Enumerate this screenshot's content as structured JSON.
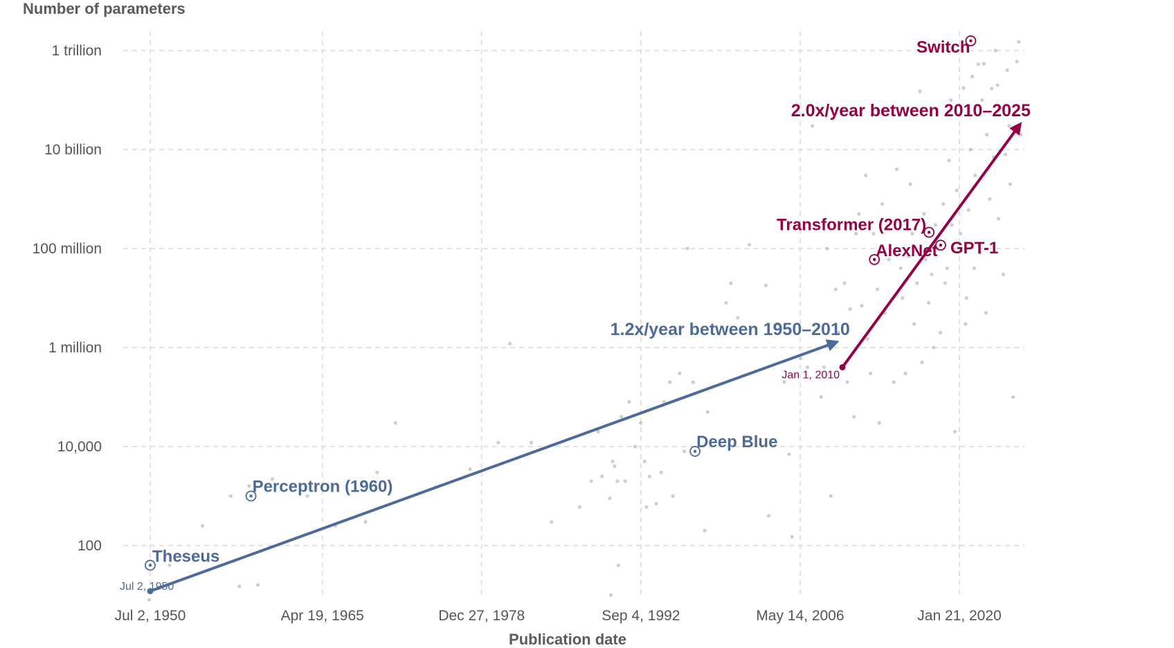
{
  "chart_data": {
    "type": "scatter",
    "ylabel": "Number of parameters",
    "xlabel": "Publication date",
    "y_scale": "log",
    "ylim": [
      8,
      2000000000000
    ],
    "xlim": [
      "1949-05-01",
      "2025-10-01"
    ],
    "grid": true,
    "y_ticks": [
      {
        "value": 100,
        "label": "100"
      },
      {
        "value": 10000,
        "label": "10,000"
      },
      {
        "value": 1000000,
        "label": "1 million"
      },
      {
        "value": 100000000,
        "label": "100 million"
      },
      {
        "value": 10000000000,
        "label": "10 billion"
      },
      {
        "value": 1000000000000,
        "label": "1 trillion"
      }
    ],
    "x_ticks": [
      {
        "value": "1950-07-02",
        "label": "Jul 2, 1950"
      },
      {
        "value": "1965-04-19",
        "label": "Apr 19, 1965"
      },
      {
        "value": "1978-12-27",
        "label": "Dec 27, 1978"
      },
      {
        "value": "1992-09-04",
        "label": "Sep 4, 1992"
      },
      {
        "value": "2006-05-14",
        "label": "May 14, 2006"
      },
      {
        "value": "2020-01-21",
        "label": "Jan 21, 2020"
      }
    ],
    "colors": {
      "early": "#4c6a9c",
      "recent": "#970046",
      "points": "#bdbdbd",
      "grid": "#d9d9d9",
      "text": "#555555"
    },
    "trends": [
      {
        "label": "1.2x/year between 1950–2010",
        "start_label": "Jul 2, 1950",
        "color": "#4c6a9c",
        "start": {
          "x": "1950-07-02",
          "y": 12
        },
        "end": {
          "x": "2009-05-01",
          "y": 1250000
        }
      },
      {
        "label": "2.0x/year between 2010–2025",
        "start_label": "Jan 1, 2010",
        "color": "#970046",
        "start": {
          "x": "2010-01-01",
          "y": 400000
        },
        "end": {
          "x": "2025-03-01",
          "y": 30000000000
        }
      }
    ],
    "highlighted": [
      {
        "name": "Theseus",
        "x": "1950-07-02",
        "y": 40,
        "color": "#4c6a9c"
      },
      {
        "name": "Perceptron (1960)",
        "x": "1959-03-01",
        "y": 1000,
        "color": "#4c6a9c"
      },
      {
        "name": "Deep Blue",
        "x": "1997-05-01",
        "y": 8000,
        "color": "#4c6a9c"
      },
      {
        "name": "AlexNet",
        "x": "2012-09-30",
        "y": 60000000,
        "color": "#970046"
      },
      {
        "name": "Transformer (2017)",
        "x": "2017-06-12",
        "y": 213000000,
        "color": "#970046"
      },
      {
        "name": "GPT-1",
        "x": "2018-06-11",
        "y": 117000000,
        "color": "#970046"
      },
      {
        "name": "Switch",
        "x": "2021-01-11",
        "y": 1570000000000,
        "color": "#970046"
      }
    ],
    "points": [
      {
        "x": "1950-06-01",
        "y": 8
      },
      {
        "x": "1952-03-01",
        "y": 40
      },
      {
        "x": "1955-01-01",
        "y": 250
      },
      {
        "x": "1957-06-01",
        "y": 1000
      },
      {
        "x": "1959-01-01",
        "y": 1600
      },
      {
        "x": "1958-03-01",
        "y": 15
      },
      {
        "x": "1959-10-01",
        "y": 16
      },
      {
        "x": "1961-01-01",
        "y": 2200
      },
      {
        "x": "1964-01-01",
        "y": 1000
      },
      {
        "x": "1966-06-01",
        "y": 250
      },
      {
        "x": "1969-01-01",
        "y": 300
      },
      {
        "x": "1970-01-01",
        "y": 3000
      },
      {
        "x": "1971-08-01",
        "y": 30000
      },
      {
        "x": "1975-01-01",
        "y": 1500
      },
      {
        "x": "1978-01-01",
        "y": 3500
      },
      {
        "x": "1980-06-01",
        "y": 12000
      },
      {
        "x": "1981-06-01",
        "y": 1200000
      },
      {
        "x": "1983-04-01",
        "y": 12000
      },
      {
        "x": "1985-01-01",
        "y": 300
      },
      {
        "x": "1987-06-01",
        "y": 600
      },
      {
        "x": "1988-06-01",
        "y": 2000
      },
      {
        "x": "1989-01-01",
        "y": 20000
      },
      {
        "x": "1989-05-01",
        "y": 2500
      },
      {
        "x": "1990-01-01",
        "y": 900
      },
      {
        "x": "1990-06-01",
        "y": 4000
      },
      {
        "x": "1990-04-01",
        "y": 5000
      },
      {
        "x": "1990-09-01",
        "y": 2000
      },
      {
        "x": "1991-01-01",
        "y": 40000
      },
      {
        "x": "1991-05-01",
        "y": 2000
      },
      {
        "x": "1991-09-01",
        "y": 80000
      },
      {
        "x": "1990-10-01",
        "y": 40
      },
      {
        "x": "1990-02-01",
        "y": 10
      },
      {
        "x": "1992-03-01",
        "y": 10000
      },
      {
        "x": "1992-09-01",
        "y": 30000
      },
      {
        "x": "1993-01-01",
        "y": 5000
      },
      {
        "x": "1993-06-01",
        "y": 2500
      },
      {
        "x": "1993-03-01",
        "y": 600
      },
      {
        "x": "1994-01-01",
        "y": 700
      },
      {
        "x": "1994-06-01",
        "y": 3000
      },
      {
        "x": "1994-09-01",
        "y": 80000
      },
      {
        "x": "1995-06-01",
        "y": 1000
      },
      {
        "x": "1995-03-01",
        "y": 200000
      },
      {
        "x": "1996-06-01",
        "y": 8000
      },
      {
        "x": "1996-01-01",
        "y": 300000
      },
      {
        "x": "1996-09-01",
        "y": 100000000
      },
      {
        "x": "1997-03-01",
        "y": 200000
      },
      {
        "x": "1998-06-01",
        "y": 50000
      },
      {
        "x": "1998-03-01",
        "y": 200
      },
      {
        "x": "2000-01-01",
        "y": 8000000
      },
      {
        "x": "2000-06-01",
        "y": 20000000
      },
      {
        "x": "2001-01-01",
        "y": 4000000
      },
      {
        "x": "2002-01-01",
        "y": 120000000
      },
      {
        "x": "2003-06-01",
        "y": 18000000
      },
      {
        "x": "2003-09-01",
        "y": 400
      },
      {
        "x": "2004-06-01",
        "y": 3000000
      },
      {
        "x": "2005-01-01",
        "y": 200000
      },
      {
        "x": "2005-06-01",
        "y": 7000
      },
      {
        "x": "2005-09-01",
        "y": 150
      },
      {
        "x": "2006-06-01",
        "y": 600000
      },
      {
        "x": "2007-01-01",
        "y": 400000
      },
      {
        "x": "2007-06-01",
        "y": 30000000000
      },
      {
        "x": "2008-03-01",
        "y": 100000
      },
      {
        "x": "2008-06-01",
        "y": 400000
      },
      {
        "x": "2008-09-01",
        "y": 100000000
      },
      {
        "x": "2009-01-01",
        "y": 1000
      },
      {
        "x": "2009-06-01",
        "y": 15000000
      },
      {
        "x": "2009-09-01",
        "y": 2000000
      },
      {
        "x": "2010-03-01",
        "y": 20000000
      },
      {
        "x": "2010-06-01",
        "y": 200000
      },
      {
        "x": "2010-09-01",
        "y": 6000000
      },
      {
        "x": "2011-01-01",
        "y": 40000
      },
      {
        "x": "2011-03-01",
        "y": 200000000
      },
      {
        "x": "2011-06-01",
        "y": 500000000
      },
      {
        "x": "2011-09-01",
        "y": 7000000
      },
      {
        "x": "2012-01-01",
        "y": 3000000000
      },
      {
        "x": "2012-03-01",
        "y": 1500000
      },
      {
        "x": "2012-06-01",
        "y": 300000
      },
      {
        "x": "2012-09-01",
        "y": 200000000
      },
      {
        "x": "2013-01-01",
        "y": 15000000
      },
      {
        "x": "2013-03-01",
        "y": 30000
      },
      {
        "x": "2013-06-01",
        "y": 800000000
      },
      {
        "x": "2013-09-01",
        "y": 5000000
      },
      {
        "x": "2014-01-01",
        "y": 60000000
      },
      {
        "x": "2014-06-01",
        "y": 200000
      },
      {
        "x": "2014-09-01",
        "y": 4000000000
      },
      {
        "x": "2015-01-01",
        "y": 40000000
      },
      {
        "x": "2015-03-01",
        "y": 10000000
      },
      {
        "x": "2015-06-01",
        "y": 300000
      },
      {
        "x": "2015-09-01",
        "y": 70000000
      },
      {
        "x": "2016-01-01",
        "y": 200000000
      },
      {
        "x": "2016-03-01",
        "y": 3000000
      },
      {
        "x": "2016-06-01",
        "y": 20000000
      },
      {
        "x": "2016-09-01",
        "y": 150000000000
      },
      {
        "x": "2017-01-01",
        "y": 500000000
      },
      {
        "x": "2017-03-01",
        "y": 60000000
      },
      {
        "x": "2017-06-01",
        "y": 8000000
      },
      {
        "x": "2017-09-01",
        "y": 30000000
      },
      {
        "x": "2018-01-01",
        "y": 300000000
      },
      {
        "x": "2018-03-01",
        "y": 100000000
      },
      {
        "x": "2018-06-01",
        "y": 2000000
      },
      {
        "x": "2018-09-01",
        "y": 800000000
      },
      {
        "x": "2019-01-01",
        "y": 40000000
      },
      {
        "x": "2019-03-01",
        "y": 6000000000
      },
      {
        "x": "2019-06-01",
        "y": 300000000
      },
      {
        "x": "2019-09-01",
        "y": 20000
      },
      {
        "x": "2019-11-01",
        "y": 1500000000
      },
      {
        "x": "2020-01-01",
        "y": 50000000000
      },
      {
        "x": "2020-03-01",
        "y": 200000000
      },
      {
        "x": "2020-06-01",
        "y": 175000000000
      },
      {
        "x": "2020-09-01",
        "y": 10000000
      },
      {
        "x": "2020-11-01",
        "y": 600000000
      },
      {
        "x": "2021-01-01",
        "y": 10000000000
      },
      {
        "x": "2021-03-01",
        "y": 300000000000
      },
      {
        "x": "2021-06-01",
        "y": 3000000000
      },
      {
        "x": "2021-09-01",
        "y": 530000000000
      },
      {
        "x": "2021-11-01",
        "y": 80000000
      },
      {
        "x": "2022-01-01",
        "y": 100000000000
      },
      {
        "x": "2022-03-01",
        "y": 540000000000
      },
      {
        "x": "2022-06-01",
        "y": 20000000000
      },
      {
        "x": "2022-09-01",
        "y": 1000000000
      },
      {
        "x": "2022-11-01",
        "y": 170000000000
      },
      {
        "x": "2023-01-01",
        "y": 7000000000
      },
      {
        "x": "2023-03-01",
        "y": 1000000000000
      },
      {
        "x": "2023-06-01",
        "y": 400000000
      },
      {
        "x": "2023-09-01",
        "y": 70000000000
      },
      {
        "x": "2023-11-01",
        "y": 30000000
      },
      {
        "x": "2024-01-01",
        "y": 8000000000
      },
      {
        "x": "2024-03-01",
        "y": 400000000000
      },
      {
        "x": "2024-06-01",
        "y": 2000000000
      },
      {
        "x": "2024-09-01",
        "y": 100000
      },
      {
        "x": "2024-11-01",
        "y": 50000000000
      },
      {
        "x": "2025-01-01",
        "y": 600000000000
      },
      {
        "x": "2025-03-01",
        "y": 1500000000000
      },
      {
        "x": "2025-05-01",
        "y": 20000000000
      },
      {
        "x": "2019-05-01",
        "y": 100000000000
      },
      {
        "x": "2021-05-01",
        "y": 40000000
      },
      {
        "x": "2022-05-01",
        "y": 5000000
      },
      {
        "x": "2023-05-01",
        "y": 200000000000
      },
      {
        "x": "2024-05-01",
        "y": 30000000000
      },
      {
        "x": "2020-08-01",
        "y": 3000000
      },
      {
        "x": "2018-11-01",
        "y": 20000000
      },
      {
        "x": "2017-11-01",
        "y": 1000000
      },
      {
        "x": "2016-11-01",
        "y": 500000
      },
      {
        "x": "2015-11-01",
        "y": 2000000000
      }
    ]
  }
}
